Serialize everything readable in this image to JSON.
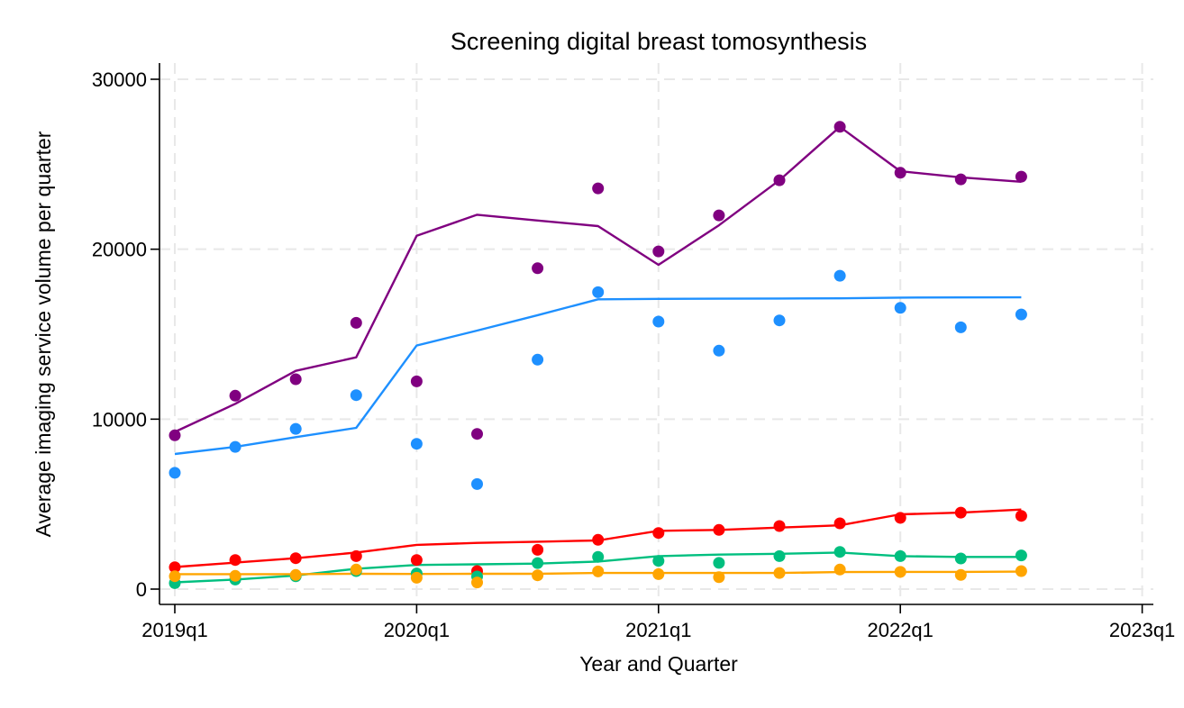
{
  "chart_data": {
    "type": "scatter",
    "title": "Screening digital breast tomosynthesis",
    "xlabel": "Year and Quarter",
    "ylabel": "Average imaging service volume per quarter",
    "x": [
      "2019q1",
      "2019q2",
      "2019q3",
      "2019q4",
      "2020q1",
      "2020q2",
      "2020q3",
      "2020q4",
      "2021q1",
      "2021q2",
      "2021q3",
      "2021q4",
      "2022q1",
      "2022q2",
      "2022q3"
    ],
    "x_ticks": [
      "2019q1",
      "2020q1",
      "2021q1",
      "2022q1",
      "2023q1"
    ],
    "x_tick_positions_quarters": [
      0,
      4,
      8,
      12,
      16
    ],
    "xlim_quarters": [
      0,
      16
    ],
    "y_ticks": [
      0,
      10000,
      20000,
      30000
    ],
    "y_tick_labels": [
      "0",
      "10000",
      "20000",
      "30000"
    ],
    "ylim": [
      -900,
      31000
    ],
    "grid": true,
    "legend": "none",
    "series": [
      {
        "name": "purple",
        "color": "#800080",
        "points": [
          9050,
          11380,
          12350,
          15670,
          12220,
          9130,
          18880,
          23580,
          19870,
          21990,
          24060,
          27200,
          24500,
          24110,
          24270
        ],
        "fitted_line": [
          9250,
          10900,
          12840,
          13640,
          20790,
          22030,
          21690,
          21360,
          19080,
          21410,
          24060,
          27200,
          24590,
          24230,
          23970
        ]
      },
      {
        "name": "blue",
        "color": "#1e90ff",
        "points": [
          6840,
          8370,
          9430,
          11410,
          8550,
          6180,
          13500,
          17470,
          15740,
          14030,
          15810,
          18440,
          16550,
          15400,
          16160
        ],
        "fitted_line": [
          7950,
          8370,
          8940,
          9490,
          14330,
          15210,
          16120,
          17050,
          17080,
          17090,
          17100,
          17110,
          17150,
          17160,
          17170
        ]
      },
      {
        "name": "red",
        "color": "#ff0000",
        "points": [
          1290,
          1710,
          1820,
          1940,
          1710,
          1060,
          2310,
          2900,
          3300,
          3480,
          3710,
          3870,
          4190,
          4500,
          4310
        ],
        "fitted_line": [
          1300,
          1560,
          1820,
          2150,
          2600,
          2720,
          2790,
          2860,
          3430,
          3480,
          3620,
          3750,
          4400,
          4500,
          4680
        ]
      },
      {
        "name": "green",
        "color": "#00bf7f",
        "points": [
          350,
          560,
          750,
          1060,
          920,
          740,
          1530,
          1900,
          1660,
          1540,
          1940,
          2190,
          1940,
          1800,
          1980
        ],
        "fitted_line": [
          400,
          560,
          800,
          1200,
          1420,
          1460,
          1500,
          1620,
          1940,
          2030,
          2080,
          2150,
          1940,
          1890,
          1890
        ]
      },
      {
        "name": "orange",
        "color": "#ffa500",
        "points": [
          760,
          780,
          830,
          1150,
          670,
          390,
          810,
          1040,
          880,
          700,
          950,
          1150,
          1010,
          830,
          1060
        ],
        "fitted_line": [
          880,
          880,
          880,
          900,
          890,
          900,
          900,
          950,
          950,
          950,
          950,
          1000,
          1010,
          1010,
          1030
        ]
      }
    ]
  }
}
